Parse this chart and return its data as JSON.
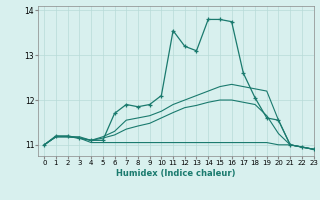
{
  "xlabel": "Humidex (Indice chaleur)",
  "bg_color": "#d8f0ee",
  "line_color": "#1a7a6e",
  "grid_color": "#b8dbd8",
  "xlim": [
    -0.5,
    23
  ],
  "ylim": [
    10.75,
    14.1
  ],
  "yticks": [
    11,
    12,
    13,
    14
  ],
  "xticks": [
    0,
    1,
    2,
    3,
    4,
    5,
    6,
    7,
    8,
    9,
    10,
    11,
    12,
    13,
    14,
    15,
    16,
    17,
    18,
    19,
    20,
    21,
    22,
    23
  ],
  "lines": [
    {
      "x": [
        0,
        1,
        2,
        3,
        4,
        5,
        6,
        7,
        8,
        9,
        10,
        11,
        12,
        13,
        14,
        15,
        16,
        17,
        18,
        19,
        20,
        21,
        22,
        23
      ],
      "y": [
        11.0,
        11.2,
        11.2,
        11.15,
        11.1,
        11.1,
        11.7,
        11.9,
        11.85,
        11.9,
        12.1,
        13.55,
        13.2,
        13.1,
        13.8,
        13.8,
        13.75,
        12.6,
        12.05,
        11.6,
        11.55,
        11.0,
        10.95,
        10.9
      ],
      "marker": true
    },
    {
      "x": [
        0,
        1,
        2,
        3,
        4,
        5,
        6,
        7,
        8,
        9,
        10,
        11,
        12,
        13,
        14,
        15,
        16,
        17,
        18,
        19,
        20,
        21,
        22,
        23
      ],
      "y": [
        11.0,
        11.18,
        11.18,
        11.18,
        11.1,
        11.18,
        11.3,
        11.55,
        11.6,
        11.65,
        11.75,
        11.9,
        12.0,
        12.1,
        12.2,
        12.3,
        12.35,
        12.3,
        12.25,
        12.2,
        11.55,
        11.0,
        10.95,
        10.9
      ],
      "marker": false
    },
    {
      "x": [
        0,
        1,
        2,
        3,
        4,
        5,
        6,
        7,
        8,
        9,
        10,
        11,
        12,
        13,
        14,
        15,
        16,
        17,
        18,
        19,
        20,
        21,
        22,
        23
      ],
      "y": [
        11.0,
        11.18,
        11.18,
        11.15,
        11.1,
        11.15,
        11.22,
        11.35,
        11.42,
        11.48,
        11.6,
        11.72,
        11.83,
        11.88,
        11.95,
        12.0,
        12.0,
        11.95,
        11.9,
        11.65,
        11.25,
        11.0,
        10.95,
        10.9
      ],
      "marker": false
    },
    {
      "x": [
        0,
        1,
        2,
        3,
        4,
        5,
        6,
        7,
        8,
        9,
        10,
        11,
        12,
        13,
        14,
        15,
        16,
        17,
        18,
        19,
        20,
        21,
        22,
        23
      ],
      "y": [
        11.0,
        11.18,
        11.18,
        11.15,
        11.05,
        11.05,
        11.05,
        11.05,
        11.05,
        11.05,
        11.05,
        11.05,
        11.05,
        11.05,
        11.05,
        11.05,
        11.05,
        11.05,
        11.05,
        11.05,
        11.0,
        11.0,
        10.95,
        10.9
      ],
      "marker": false
    }
  ]
}
